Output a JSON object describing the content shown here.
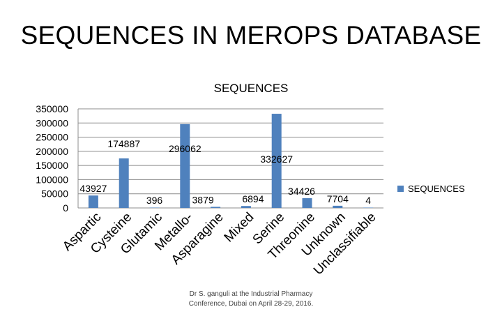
{
  "slide": {
    "title": "SEQUENCES IN MEROPS DATABASE",
    "footer_line1": "Dr S. ganguli at the Industrial Pharmacy",
    "footer_line2": "Conference, Dubai on April 28-29, 2016."
  },
  "chart_data": {
    "type": "bar",
    "title": "SEQUENCES",
    "xlabel": "",
    "ylabel": "",
    "categories": [
      "Aspartic",
      "Cysteine",
      "Glutamic",
      "Metallo-",
      "Asparagine",
      "Mixed",
      "Serine",
      "Threonine",
      "Unknown",
      "Unclassifiable"
    ],
    "series": [
      {
        "name": "SEQUENCES",
        "values": [
          43927,
          174887,
          396,
          296062,
          3879,
          6894,
          332627,
          34426,
          7704,
          4
        ]
      }
    ],
    "data_labels": [
      "43927",
      "174887",
      "396",
      "296062",
      "3879",
      "6894",
      "332627",
      "34426",
      "7704",
      "4"
    ],
    "yticks": [
      "0",
      "50000",
      "100000",
      "150000",
      "200000",
      "250000",
      "300000",
      "350000"
    ],
    "ylim": [
      0,
      350000
    ],
    "grid": true,
    "legend_position": "right",
    "bar_color": "#4f81bd"
  }
}
